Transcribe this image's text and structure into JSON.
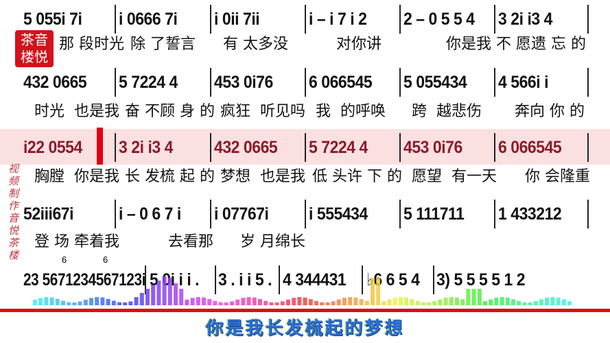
{
  "watermark_seal": "茶音楼悦",
  "vertical_credit": "视频制作音悦茶楼",
  "caption": "你是我长发梳起的梦想",
  "colors": {
    "highlight_bg": "#fbe0e2",
    "highlight_text": "#8b1a2a",
    "cursor": "#e00010",
    "divider": "#d80f16",
    "caption": "#2b6fd6"
  },
  "rows": [
    {
      "measures": [
        "5 055i 7i",
        "i 0666 7i",
        "i 0ii 7ii",
        "i – i 7 i 2",
        "2 – 0 5 5 4",
        "3 2i i3 4"
      ],
      "lyrics": [
        "那 段时光",
        "除 了誓言",
        "有 太多没",
        "对你讲",
        "你是我 不 愿遗 忘 的"
      ]
    },
    {
      "measures": [
        "432 0665",
        "5 7224 4",
        "453 0i76",
        "6 066545",
        "5 055434",
        "4 566i i"
      ],
      "lyrics": [
        "时光  也是我",
        "奋 不顾 身 的",
        "疯狂  听见吗",
        "我  的呼唤",
        "跨  越悲伤",
        "奔向 你 的"
      ]
    },
    {
      "measures": [
        "i22 0554",
        "3 2i i3 4",
        "432 0665",
        "5 7224 4",
        "453 0i76",
        "6 066545"
      ],
      "lyrics": [
        "胸膛  你是我",
        "长 发梳 起 的",
        "梦想  也是我",
        "低 头许 下 的",
        "愿望  有一天",
        "你 会隆重"
      ]
    },
    {
      "measures": [
        "52iii67i",
        "i – 0 6 7 i",
        "i 07767i",
        "i 555434",
        "5 111711",
        "1 433212"
      ],
      "lyrics": [
        "登 场 牵着我",
        "去看那",
        "岁 月绵长"
      ]
    },
    {
      "measures": [
        "23 5671234567123i",
        "5 0i i i .",
        "3 . i i 5 .",
        "4 344431",
        "♭6 6 5 4",
        "3) 5  5  5  5 1  2"
      ],
      "tuplets": [
        "6",
        "6"
      ]
    }
  ]
}
